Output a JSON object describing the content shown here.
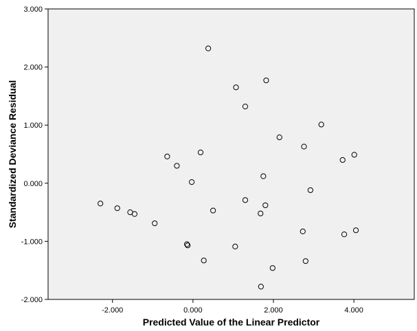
{
  "chart_data": {
    "type": "scatter",
    "xlabel": "Predicted Value of the Linear Predictor",
    "ylabel": "Standardized Deviance Residual",
    "xlim": [
      -3.6,
      5.5
    ],
    "ylim": [
      -2.0,
      3.0
    ],
    "x_ticks": [
      -2,
      0,
      2,
      4
    ],
    "y_ticks": [
      -2,
      -1,
      0,
      1,
      2,
      3
    ],
    "x_tick_labels": [
      "-2.000",
      "0.000",
      "2.000",
      "4.000"
    ],
    "y_tick_labels": [
      "-2.000",
      "-1.000",
      "0.000",
      "1.000",
      "2.000",
      "3.000"
    ],
    "grid": false,
    "background_color": "#f0f0f0",
    "marker": "open-circle",
    "points": [
      {
        "x": 0.38,
        "y": 2.32
      },
      {
        "x": 1.07,
        "y": 1.65
      },
      {
        "x": 1.82,
        "y": 1.77
      },
      {
        "x": 1.3,
        "y": 1.32
      },
      {
        "x": 3.19,
        "y": 1.01
      },
      {
        "x": 2.15,
        "y": 0.79
      },
      {
        "x": 2.76,
        "y": 0.63
      },
      {
        "x": 4.01,
        "y": 0.49
      },
      {
        "x": 3.72,
        "y": 0.4
      },
      {
        "x": -0.64,
        "y": 0.46
      },
      {
        "x": 0.19,
        "y": 0.53
      },
      {
        "x": -0.4,
        "y": 0.3
      },
      {
        "x": 1.75,
        "y": 0.12
      },
      {
        "x": -0.03,
        "y": 0.02
      },
      {
        "x": 2.92,
        "y": -0.12
      },
      {
        "x": -2.3,
        "y": -0.35
      },
      {
        "x": -1.88,
        "y": -0.43
      },
      {
        "x": -1.56,
        "y": -0.5
      },
      {
        "x": -1.45,
        "y": -0.53
      },
      {
        "x": 1.3,
        "y": -0.29
      },
      {
        "x": 1.8,
        "y": -0.38
      },
      {
        "x": 0.5,
        "y": -0.47
      },
      {
        "x": 1.68,
        "y": -0.52
      },
      {
        "x": -0.95,
        "y": -0.69
      },
      {
        "x": 2.73,
        "y": -0.83
      },
      {
        "x": 4.05,
        "y": -0.81
      },
      {
        "x": 3.76,
        "y": -0.88
      },
      {
        "x": -0.15,
        "y": -1.05
      },
      {
        "x": -0.13,
        "y": -1.07
      },
      {
        "x": 1.05,
        "y": -1.09
      },
      {
        "x": 0.27,
        "y": -1.33
      },
      {
        "x": 2.8,
        "y": -1.34
      },
      {
        "x": 1.98,
        "y": -1.46
      },
      {
        "x": 1.69,
        "y": -1.78
      }
    ]
  }
}
